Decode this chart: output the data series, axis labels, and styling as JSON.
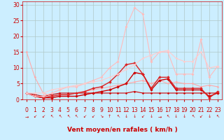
{
  "bg_color": "#cceeff",
  "grid_color": "#b0c8c8",
  "xlabel": "Vent moyen/en rafales ( km/h )",
  "xlabel_color": "#cc0000",
  "xlabel_fontsize": 6.5,
  "tick_color": "#cc0000",
  "tick_fontsize": 5.5,
  "ylim": [
    0,
    31
  ],
  "xlim": [
    -0.5,
    23.5
  ],
  "yticks": [
    0,
    5,
    10,
    15,
    20,
    25,
    30
  ],
  "xticks": [
    0,
    1,
    2,
    3,
    4,
    5,
    6,
    7,
    8,
    9,
    10,
    11,
    12,
    13,
    14,
    15,
    16,
    17,
    18,
    19,
    20,
    21,
    22,
    23
  ],
  "series": [
    {
      "x": [
        0,
        1,
        2,
        3,
        4,
        5,
        6,
        7,
        8,
        9,
        10,
        11,
        12,
        13,
        14,
        15,
        16,
        17,
        18,
        19,
        20,
        21,
        22,
        23
      ],
      "y": [
        2,
        1.5,
        1,
        1.5,
        2,
        2,
        2,
        2,
        2,
        2,
        2,
        2,
        2,
        2.5,
        2,
        2,
        2,
        2,
        2,
        2,
        2,
        2,
        2,
        2
      ],
      "color": "#cc0000",
      "lw": 0.8,
      "marker": "D",
      "ms": 1.5
    },
    {
      "x": [
        0,
        1,
        2,
        3,
        4,
        5,
        6,
        7,
        8,
        9,
        10,
        11,
        12,
        13,
        14,
        15,
        16,
        17,
        18,
        19,
        20,
        21,
        22,
        23
      ],
      "y": [
        15,
        7,
        2,
        1,
        1.5,
        1.5,
        2,
        2.5,
        3,
        3.5,
        4,
        4.5,
        5,
        5.5,
        6,
        5,
        6,
        5,
        5.5,
        5,
        5,
        4,
        4.5,
        4
      ],
      "color": "#ffaaaa",
      "lw": 0.8,
      "marker": "D",
      "ms": 1.5
    },
    {
      "x": [
        0,
        1,
        2,
        3,
        4,
        5,
        6,
        7,
        8,
        9,
        10,
        11,
        12,
        13,
        14,
        15,
        16,
        17,
        18,
        19,
        20,
        21,
        22,
        23
      ],
      "y": [
        2,
        1,
        0.5,
        0.5,
        1,
        1,
        1,
        1.5,
        2,
        2.5,
        3,
        4,
        5,
        8.5,
        8,
        3,
        6,
        6.5,
        3,
        3,
        3,
        3,
        1,
        2
      ],
      "color": "#cc0000",
      "lw": 1.0,
      "marker": "D",
      "ms": 2.0
    },
    {
      "x": [
        0,
        1,
        2,
        3,
        4,
        5,
        6,
        7,
        8,
        9,
        10,
        11,
        12,
        13,
        14,
        15,
        16,
        17,
        18,
        19,
        20,
        21,
        22,
        23
      ],
      "y": [
        2,
        1,
        0.5,
        1,
        1.5,
        1.5,
        2,
        2.5,
        3.5,
        4,
        5.5,
        8,
        11,
        11.5,
        8,
        3.5,
        7,
        7,
        3.5,
        3.5,
        3.5,
        3.5,
        0.5,
        2.5
      ],
      "color": "#dd2222",
      "lw": 1.0,
      "marker": "D",
      "ms": 2.0
    },
    {
      "x": [
        0,
        1,
        2,
        3,
        4,
        5,
        6,
        7,
        8,
        9,
        10,
        11,
        12,
        13,
        14,
        15,
        16,
        17,
        18,
        19,
        20,
        21,
        22,
        23
      ],
      "y": [
        2,
        1,
        1,
        2,
        3,
        4,
        4,
        5,
        6,
        7,
        10,
        12,
        23,
        29,
        27,
        12,
        15,
        15,
        8,
        8,
        8,
        19,
        7,
        10.5
      ],
      "color": "#ffbbbb",
      "lw": 0.8,
      "marker": "D",
      "ms": 1.8
    },
    {
      "x": [
        0,
        1,
        2,
        3,
        4,
        5,
        6,
        7,
        8,
        9,
        10,
        11,
        12,
        13,
        14,
        15,
        16,
        17,
        18,
        19,
        20,
        21,
        22,
        23
      ],
      "y": [
        2,
        2,
        2,
        3,
        3.5,
        4,
        4.5,
        5,
        5.5,
        6,
        7,
        8,
        9.5,
        11,
        13,
        14,
        15,
        15.5,
        13,
        12,
        12,
        15,
        10,
        10.5
      ],
      "color": "#ffcccc",
      "lw": 0.8,
      "marker": "D",
      "ms": 1.5
    }
  ],
  "wind_arrows": [
    "→",
    "↙",
    "↙",
    "↖",
    "↖",
    "↖",
    "↖",
    "↙",
    "↙",
    "↘",
    "↑",
    "↖",
    "↓",
    "↓",
    "↙",
    "↓",
    "→",
    "↖",
    "↓",
    "↓",
    "↖",
    "↙",
    "↓",
    "↖"
  ]
}
